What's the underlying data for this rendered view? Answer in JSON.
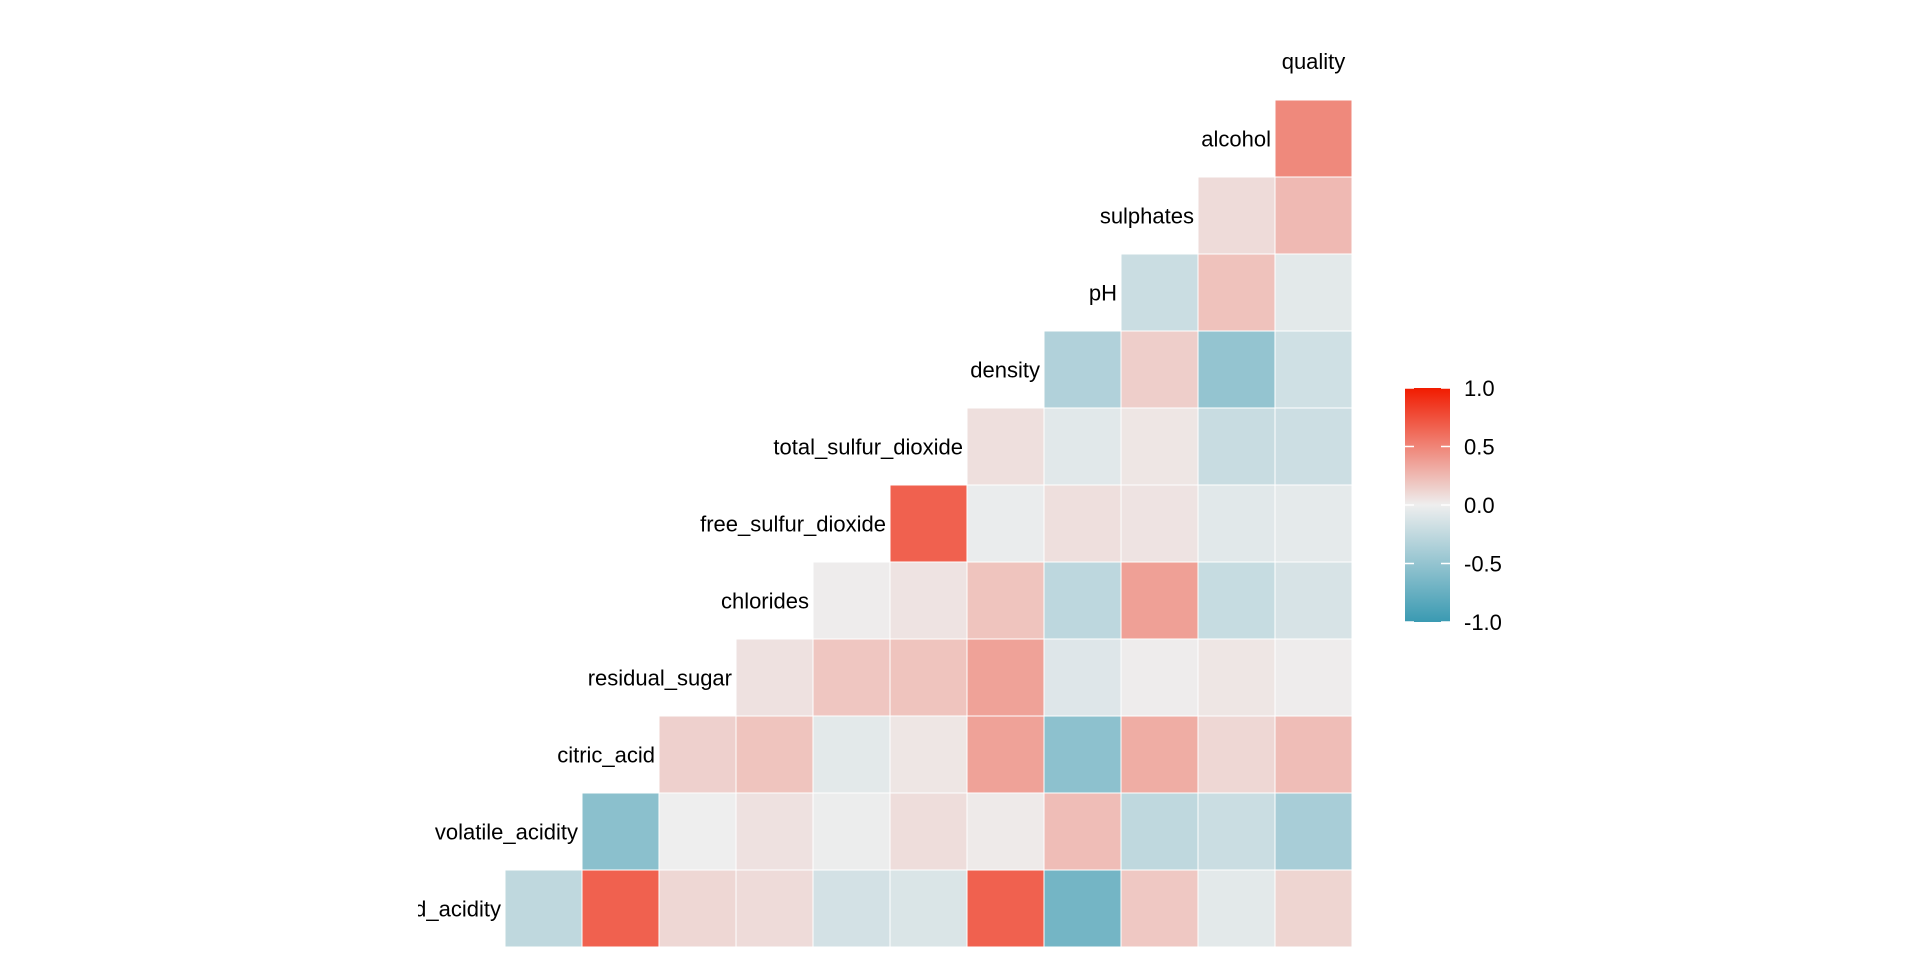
{
  "chart_data": {
    "type": "heatmap",
    "title": "",
    "xlabel": "",
    "ylabel": "",
    "variables": [
      "fixed_acidity",
      "volatile_acidity",
      "citric_acid",
      "residual_sugar",
      "chlorides",
      "free_sulfur_dioxide",
      "total_sulfur_dioxide",
      "density",
      "pH",
      "sulphates",
      "alcohol",
      "quality"
    ],
    "matrix": [
      [
        null,
        null,
        null,
        null,
        null,
        null,
        null,
        null,
        null,
        null,
        null,
        null
      ],
      [
        -0.26,
        null,
        null,
        null,
        null,
        null,
        null,
        null,
        null,
        null,
        null,
        null
      ],
      [
        0.67,
        -0.55,
        null,
        null,
        null,
        null,
        null,
        null,
        null,
        null,
        null,
        null
      ],
      [
        0.11,
        0.0,
        0.14,
        null,
        null,
        null,
        null,
        null,
        null,
        null,
        null,
        null
      ],
      [
        0.09,
        0.06,
        0.2,
        0.06,
        null,
        null,
        null,
        null,
        null,
        null,
        null,
        null
      ],
      [
        -0.15,
        -0.01,
        -0.06,
        0.19,
        0.01,
        null,
        null,
        null,
        null,
        null,
        null,
        null
      ],
      [
        -0.11,
        0.08,
        0.04,
        0.2,
        0.05,
        0.67,
        null,
        null,
        null,
        null,
        null,
        null
      ],
      [
        0.67,
        0.02,
        0.36,
        0.36,
        0.2,
        -0.02,
        0.07,
        null,
        null,
        null,
        null,
        null
      ],
      [
        -0.68,
        0.23,
        -0.54,
        -0.09,
        -0.27,
        0.07,
        -0.07,
        -0.34,
        null,
        null,
        null,
        null
      ],
      [
        0.18,
        -0.26,
        0.31,
        0.01,
        0.37,
        0.05,
        0.04,
        0.15,
        -0.2,
        null,
        null,
        null
      ],
      [
        -0.06,
        -0.2,
        0.11,
        0.04,
        -0.22,
        -0.07,
        -0.21,
        -0.5,
        0.21,
        0.09,
        null,
        null
      ],
      [
        0.12,
        -0.39,
        0.23,
        0.01,
        -0.13,
        -0.05,
        -0.19,
        -0.17,
        -0.06,
        0.25,
        0.48,
        null
      ]
    ],
    "legend": {
      "position": "right",
      "ticks": [
        "1.0",
        "0.5",
        "0.0",
        "-0.5",
        "-1.0"
      ],
      "tick_values": [
        1.0,
        0.5,
        0.0,
        -0.5,
        -1.0
      ],
      "range": [
        -1.0,
        1.0
      ],
      "colors": {
        "low": "#3A9AB2",
        "mid": "#EEEEEE",
        "high": "#F11B00"
      }
    },
    "grid": false
  },
  "colors": {
    "background": "#FFFFFF",
    "cell_border": "#FFFFFF"
  }
}
